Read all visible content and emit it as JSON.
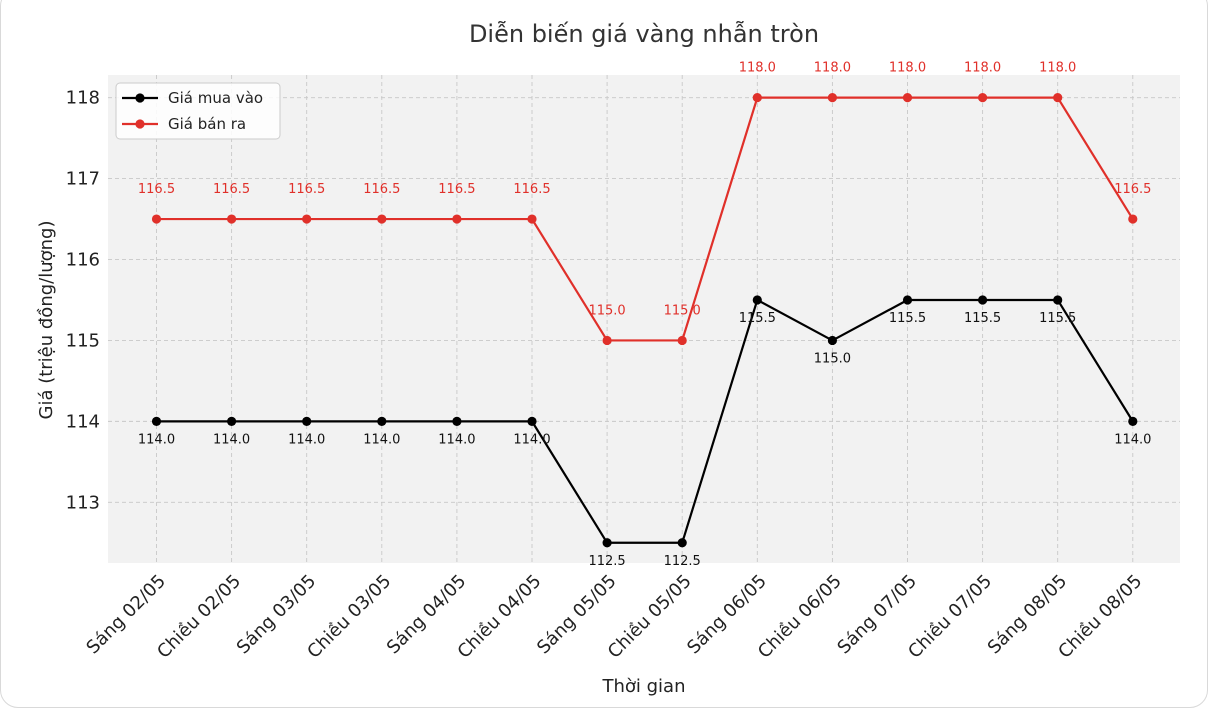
{
  "chart_data": {
    "type": "line",
    "title": "Diễn biến giá vàng nhẫn tròn",
    "xlabel": "Thời gian",
    "ylabel": "Giá (triệu đồng/lượng)",
    "categories": [
      "Sáng 02/05",
      "Chiều 02/05",
      "Sáng 03/05",
      "Chiều 03/05",
      "Sáng 04/05",
      "Chiều 04/05",
      "Sáng 05/05",
      "Chiều 05/05",
      "Sáng 06/05",
      "Chiều 06/05",
      "Sáng 07/05",
      "Chiều 07/05",
      "Sáng 08/05",
      "Chiều 08/05"
    ],
    "series": [
      {
        "name": "Giá mua vào",
        "color": "#000000",
        "values": [
          114.0,
          114.0,
          114.0,
          114.0,
          114.0,
          114.0,
          112.5,
          112.5,
          115.5,
          115.0,
          115.5,
          115.5,
          115.5,
          114.0
        ]
      },
      {
        "name": "Giá bán ra",
        "color": "#e0302a",
        "values": [
          116.5,
          116.5,
          116.5,
          116.5,
          116.5,
          116.5,
          115.0,
          115.0,
          118.0,
          118.0,
          118.0,
          118.0,
          118.0,
          116.5
        ]
      }
    ],
    "yticks": [
      "113",
      "114",
      "115",
      "116",
      "117",
      "118"
    ],
    "ylim": [
      112.25,
      118.28
    ],
    "grid": true,
    "legend": "top-left",
    "plot_bg": "#f2f2f2",
    "grid_color": "#c8c8c8"
  }
}
